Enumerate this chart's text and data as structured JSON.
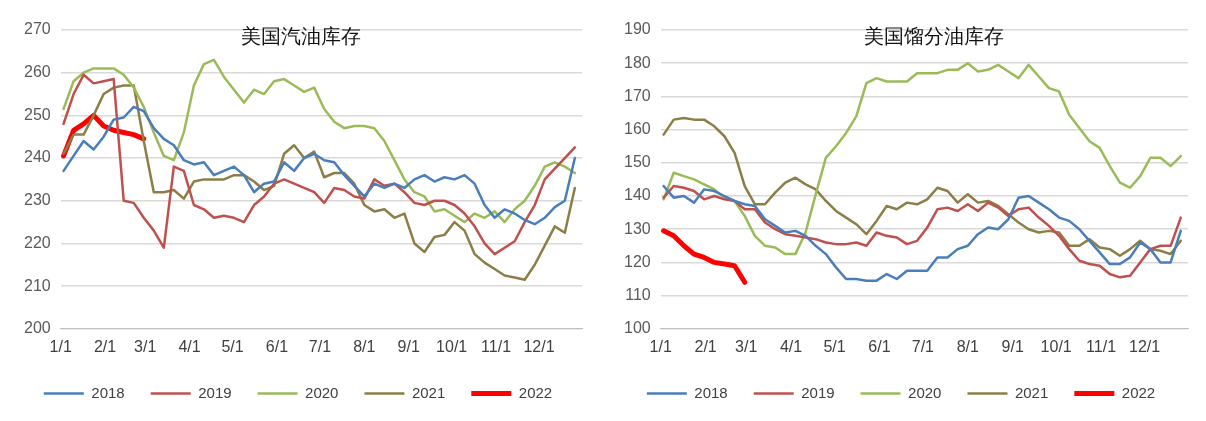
{
  "chart_data": [
    {
      "type": "line",
      "title": "美国汽油库存",
      "legend": "bottom",
      "grid": "y",
      "marker": "none",
      "line_style": "solid",
      "x": [
        "--01-03",
        "--01-10",
        "--01-17",
        "--01-24",
        "--01-31",
        "--02-07",
        "--02-14",
        "--02-21",
        "--02-28",
        "--03-07",
        "--03-14",
        "--03-21",
        "--03-28",
        "--04-04",
        "--04-11",
        "--04-18",
        "--04-25",
        "--05-02",
        "--05-09",
        "--05-16",
        "--05-23",
        "--05-30",
        "--06-06",
        "--06-13",
        "--06-20",
        "--06-27",
        "--07-04",
        "--07-11",
        "--07-18",
        "--07-25",
        "--08-01",
        "--08-08",
        "--08-15",
        "--08-22",
        "--08-29",
        "--09-05",
        "--09-12",
        "--09-19",
        "--09-26",
        "--10-03",
        "--10-10",
        "--10-17",
        "--10-24",
        "--10-31",
        "--11-07",
        "--11-14",
        "--11-21",
        "--11-28",
        "--12-05",
        "--12-12",
        "--12-19",
        "--12-26"
      ],
      "xlim": [
        "--01-01",
        "--12-31"
      ],
      "xticks": [
        {
          "value": "--01-01",
          "label": "1/1"
        },
        {
          "value": "--02-01",
          "label": "2/1"
        },
        {
          "value": "--03-01",
          "label": "3/1"
        },
        {
          "value": "--04-01",
          "label": "4/1"
        },
        {
          "value": "--05-01",
          "label": "5/1"
        },
        {
          "value": "--06-01",
          "label": "6/1"
        },
        {
          "value": "--07-01",
          "label": "7/1"
        },
        {
          "value": "--08-01",
          "label": "8/1"
        },
        {
          "value": "--09-01",
          "label": "9/1"
        },
        {
          "value": "--10-01",
          "label": "10/1"
        },
        {
          "value": "--11-01",
          "label": "11/1"
        },
        {
          "value": "--12-01",
          "label": "12/1"
        }
      ],
      "ylim": [
        200,
        270
      ],
      "yticks": [
        200,
        210,
        220,
        230,
        240,
        250,
        260,
        270
      ],
      "series": [
        {
          "name": "2018",
          "color": "#4a7ebb",
          "values": [
            237,
            240.5,
            244,
            242,
            245,
            249,
            249.5,
            252,
            251,
            247,
            244.5,
            243,
            239.5,
            238.5,
            239,
            236,
            237,
            238,
            236,
            232,
            234,
            234.5,
            239,
            237,
            240,
            241,
            239.5,
            239,
            236,
            233.5,
            231,
            234,
            233,
            234,
            233,
            235,
            236,
            234.5,
            235.5,
            235,
            236,
            234,
            229,
            226,
            228,
            227,
            225.5,
            224.5,
            226,
            228.5,
            230,
            240
          ]
        },
        {
          "name": "2019",
          "color": "#c0504d",
          "values": [
            248,
            255,
            259.5,
            257.5,
            258,
            258.5,
            230,
            229.5,
            226,
            223,
            219,
            238,
            237,
            229,
            228,
            226,
            226.5,
            226,
            225,
            229,
            231,
            234,
            235,
            234,
            233,
            232,
            229.5,
            233,
            232.5,
            231,
            230.5,
            235,
            233.5,
            234,
            232,
            229.5,
            229,
            230,
            230,
            229,
            227,
            224,
            220,
            217.5,
            219,
            220.5,
            225,
            229,
            235,
            237.5,
            240,
            242.5
          ]
        },
        {
          "name": "2020",
          "color": "#9bbb59",
          "values": [
            251.5,
            258,
            260,
            261,
            261,
            261,
            259.5,
            256.5,
            252,
            246,
            240.5,
            239.5,
            246,
            257,
            262,
            263,
            259,
            256,
            253,
            256,
            255,
            258,
            258.5,
            257,
            255.5,
            256.5,
            251.5,
            248.5,
            247,
            247.5,
            247.5,
            247,
            244,
            239.5,
            235,
            232,
            231,
            227.5,
            228,
            226.5,
            225,
            227,
            226,
            227.5,
            225,
            228,
            230,
            233.5,
            238,
            239,
            238,
            236.5
          ]
        },
        {
          "name": "2021",
          "color": "#8c7e47",
          "values": [
            241,
            245.5,
            245.5,
            250,
            255,
            256.5,
            257,
            257,
            244,
            232,
            232,
            232.5,
            230.5,
            234.5,
            235,
            235,
            235,
            236,
            236,
            234.5,
            232.5,
            233.5,
            241,
            243,
            240,
            241.5,
            235.5,
            236.5,
            236.5,
            234,
            229,
            227.5,
            228,
            226,
            227,
            220,
            218,
            221.5,
            222,
            225,
            223,
            217.5,
            215.5,
            214,
            212.5,
            212,
            211.5,
            215,
            219.5,
            224,
            222.5,
            233
          ]
        },
        {
          "name": "2022",
          "color": "#ff0000",
          "values": [
            240.5,
            246.5,
            248,
            250,
            247.5,
            246.5,
            246,
            245.5,
            244.5,
            null,
            null,
            null,
            null,
            null,
            null,
            null,
            null,
            null,
            null,
            null,
            null,
            null,
            null,
            null,
            null,
            null,
            null,
            null,
            null,
            null,
            null,
            null,
            null,
            null,
            null,
            null,
            null,
            null,
            null,
            null,
            null,
            null,
            null,
            null,
            null,
            null,
            null,
            null,
            null,
            null,
            null,
            null
          ]
        }
      ]
    },
    {
      "type": "line",
      "title": "美国馏分油库存",
      "legend": "bottom",
      "grid": "y",
      "marker": "none",
      "line_style": "solid",
      "x": [
        "--01-03",
        "--01-10",
        "--01-17",
        "--01-24",
        "--01-31",
        "--02-07",
        "--02-14",
        "--02-21",
        "--02-28",
        "--03-07",
        "--03-14",
        "--03-21",
        "--03-28",
        "--04-04",
        "--04-11",
        "--04-18",
        "--04-25",
        "--05-02",
        "--05-09",
        "--05-16",
        "--05-23",
        "--05-30",
        "--06-06",
        "--06-13",
        "--06-20",
        "--06-27",
        "--07-04",
        "--07-11",
        "--07-18",
        "--07-25",
        "--08-01",
        "--08-08",
        "--08-15",
        "--08-22",
        "--08-29",
        "--09-05",
        "--09-12",
        "--09-19",
        "--09-26",
        "--10-03",
        "--10-10",
        "--10-17",
        "--10-24",
        "--10-31",
        "--11-07",
        "--11-14",
        "--11-21",
        "--11-28",
        "--12-05",
        "--12-12",
        "--12-19",
        "--12-26"
      ],
      "xlim": [
        "--01-01",
        "--12-31"
      ],
      "xticks": [
        {
          "value": "--01-01",
          "label": "1/1"
        },
        {
          "value": "--02-01",
          "label": "2/1"
        },
        {
          "value": "--03-01",
          "label": "3/1"
        },
        {
          "value": "--04-01",
          "label": "4/1"
        },
        {
          "value": "--05-01",
          "label": "5/1"
        },
        {
          "value": "--06-01",
          "label": "6/1"
        },
        {
          "value": "--07-01",
          "label": "7/1"
        },
        {
          "value": "--08-01",
          "label": "8/1"
        },
        {
          "value": "--09-01",
          "label": "9/1"
        },
        {
          "value": "--10-01",
          "label": "10/1"
        },
        {
          "value": "--11-01",
          "label": "11/1"
        },
        {
          "value": "--12-01",
          "label": "12/1"
        }
      ],
      "ylim": [
        100,
        190
      ],
      "yticks": [
        100,
        110,
        120,
        130,
        140,
        150,
        160,
        170,
        180,
        190
      ],
      "series": [
        {
          "name": "2018",
          "color": "#4a7ebb",
          "values": [
            143,
            139.5,
            140,
            138,
            142,
            141.5,
            140,
            138.5,
            137.5,
            137,
            133,
            131,
            129,
            129.5,
            128,
            125,
            122.5,
            118.5,
            115,
            115,
            114.5,
            114.5,
            116.5,
            115,
            117.5,
            117.5,
            117.5,
            121.5,
            121.5,
            124,
            125,
            128.5,
            130.5,
            130,
            133,
            139.5,
            140,
            138,
            136,
            133.5,
            132.5,
            130,
            126.5,
            123,
            119.5,
            119.5,
            121.5,
            126,
            124,
            120,
            120,
            129.5
          ]
        },
        {
          "name": "2019",
          "color": "#c0504d",
          "values": [
            139.5,
            143,
            142.5,
            141.5,
            139,
            140,
            139,
            138.5,
            136,
            136,
            132,
            130,
            128.5,
            128,
            127.5,
            127,
            126,
            125.5,
            125.5,
            126,
            125,
            129,
            128,
            127.5,
            125.5,
            126.5,
            130.5,
            136,
            136.5,
            135.5,
            137.5,
            135.5,
            138,
            136.5,
            134,
            136,
            136.5,
            133.5,
            131,
            128,
            124,
            120.5,
            119.5,
            119,
            116.5,
            115.5,
            116,
            120,
            124,
            125,
            125,
            133.5
          ]
        },
        {
          "name": "2020",
          "color": "#9bbb59",
          "values": [
            139,
            147,
            146,
            145,
            143.5,
            142,
            139.5,
            138.5,
            134,
            128,
            125,
            124.5,
            122.5,
            122.5,
            129,
            140.5,
            151.5,
            155,
            159,
            164,
            174,
            175.5,
            174.5,
            174.5,
            174.5,
            177,
            177,
            177,
            178,
            178,
            180,
            177.5,
            178,
            179.5,
            177.5,
            175.5,
            179.5,
            176,
            172.5,
            171.5,
            164.5,
            160.5,
            156.5,
            154.5,
            149,
            144,
            142.5,
            146,
            151.5,
            151.5,
            149,
            152
          ]
        },
        {
          "name": "2021",
          "color": "#8c7e47",
          "values": [
            158.5,
            163,
            163.5,
            163,
            163,
            161,
            158,
            153,
            143,
            137.5,
            137.5,
            141,
            144,
            145.5,
            143.5,
            142,
            138.5,
            135.5,
            133.5,
            131.5,
            128.5,
            132.5,
            137,
            136,
            138,
            137.5,
            139,
            142.5,
            141.5,
            138,
            140.5,
            138,
            138.5,
            137,
            134.5,
            132,
            130,
            129,
            129.5,
            129,
            125,
            125,
            127,
            124.5,
            124,
            122,
            124,
            126.5,
            124,
            123.5,
            122.5,
            126.5
          ]
        },
        {
          "name": "2022",
          "color": "#ff0000",
          "values": [
            129.5,
            128,
            125,
            122.5,
            121.5,
            120,
            119.5,
            119,
            114,
            null,
            null,
            null,
            null,
            null,
            null,
            null,
            null,
            null,
            null,
            null,
            null,
            null,
            null,
            null,
            null,
            null,
            null,
            null,
            null,
            null,
            null,
            null,
            null,
            null,
            null,
            null,
            null,
            null,
            null,
            null,
            null,
            null,
            null,
            null,
            null,
            null,
            null,
            null,
            null,
            null,
            null,
            null
          ]
        }
      ]
    }
  ]
}
